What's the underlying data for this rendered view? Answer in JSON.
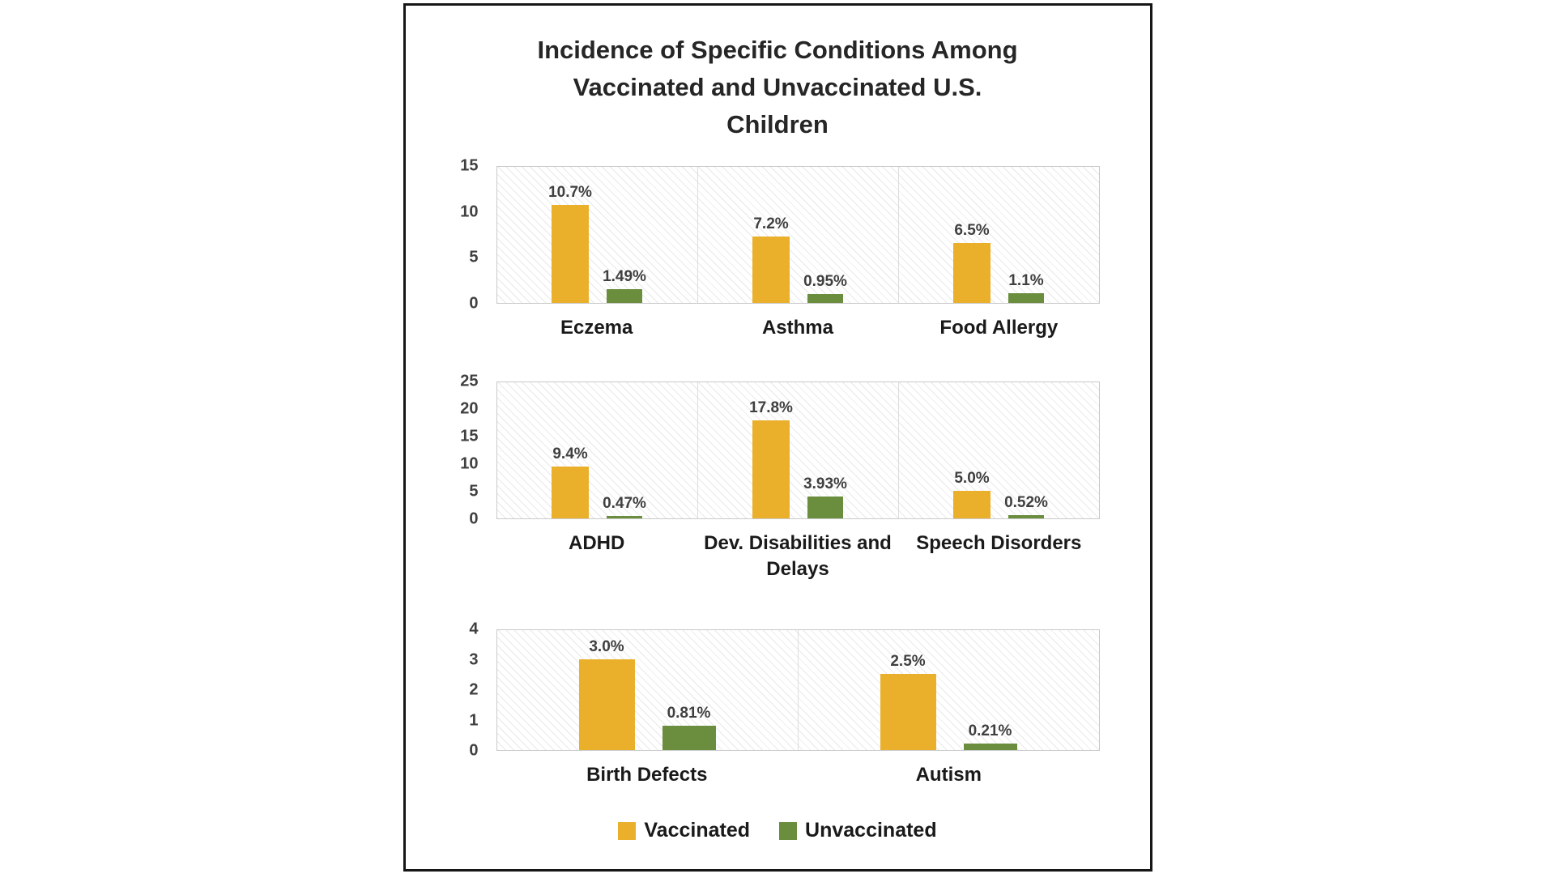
{
  "title": {
    "lines": [
      "Incidence of Specific Conditions Among",
      "Vaccinated and Unvaccinated U.S.",
      "Children"
    ]
  },
  "colors": {
    "vaccinated": "#EAB02C",
    "unvaccinated": "#6B8E3E",
    "label_text": "#3F3F3F",
    "axis_text": "#404040"
  },
  "legend": [
    {
      "name": "Vaccinated",
      "color": "#EAB02C"
    },
    {
      "name": "Unvaccinated",
      "color": "#6B8E3E"
    }
  ],
  "chart_data": [
    {
      "type": "bar",
      "categories": [
        "Eczema",
        "Asthma",
        "Food Allergy"
      ],
      "series": [
        {
          "name": "Vaccinated",
          "values": [
            10.7,
            7.2,
            6.5
          ],
          "labels": [
            "10.7%",
            "7.2%",
            "6.5%"
          ]
        },
        {
          "name": "Unvaccinated",
          "values": [
            1.49,
            0.95,
            1.1
          ],
          "labels": [
            "1.49%",
            "0.95%",
            "1.1%"
          ]
        }
      ],
      "ylim": [
        0,
        15
      ],
      "yticks": [
        0,
        5,
        10,
        15
      ],
      "grid": "vertical-category-dividers",
      "legend_position": "bottom-shared"
    },
    {
      "type": "bar",
      "categories": [
        "ADHD",
        "Dev. Disabilities and Delays",
        "Speech Disorders"
      ],
      "series": [
        {
          "name": "Vaccinated",
          "values": [
            9.4,
            17.8,
            5.0
          ],
          "labels": [
            "9.4%",
            "17.8%",
            "5.0%"
          ]
        },
        {
          "name": "Unvaccinated",
          "values": [
            0.47,
            3.93,
            0.52
          ],
          "labels": [
            "0.47%",
            "3.93%",
            "0.52%"
          ]
        }
      ],
      "ylim": [
        0,
        25
      ],
      "yticks": [
        0,
        5,
        10,
        15,
        20,
        25
      ],
      "grid": "vertical-category-dividers",
      "legend_position": "bottom-shared"
    },
    {
      "type": "bar",
      "categories": [
        "Birth Defects",
        "Autism"
      ],
      "series": [
        {
          "name": "Vaccinated",
          "values": [
            3.0,
            2.5
          ],
          "labels": [
            "3.0%",
            "2.5%"
          ]
        },
        {
          "name": "Unvaccinated",
          "values": [
            0.81,
            0.21
          ],
          "labels": [
            "0.81%",
            "0.21%"
          ]
        }
      ],
      "ylim": [
        0,
        4
      ],
      "yticks": [
        0,
        1,
        2,
        3,
        4
      ],
      "grid": "vertical-category-dividers",
      "legend_position": "bottom-shared"
    }
  ]
}
